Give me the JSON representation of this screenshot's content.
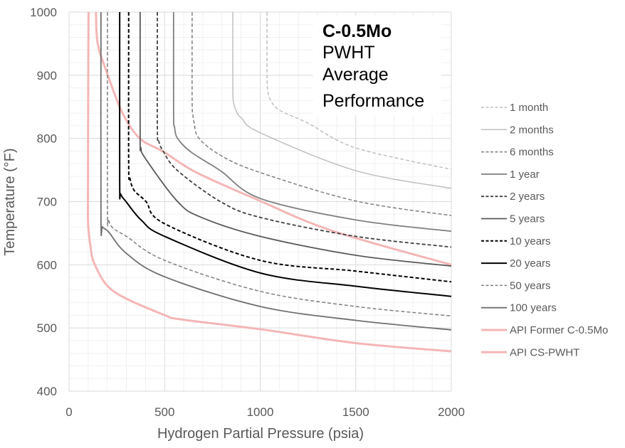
{
  "chart_data": {
    "type": "line",
    "title": "",
    "annotation": [
      "C-0.5Mo",
      "PWHT",
      "Average",
      "Performance"
    ],
    "xlabel": "Hydrogen Partial Pressure (psia)",
    "ylabel": "Temperature (°F)",
    "xlim": [
      0,
      2000
    ],
    "ylim": [
      400,
      1000
    ],
    "xticks": [
      0,
      500,
      1000,
      1500,
      2000
    ],
    "yticks": [
      400,
      500,
      600,
      700,
      800,
      900,
      1000
    ],
    "grid": true,
    "legend_position": "right",
    "series": [
      {
        "name": "1 month",
        "color": "#bfbfbf",
        "dash": true,
        "width": 1.5,
        "x": [
          1036,
          1036,
          1040,
          1052,
          1100,
          1251,
          1500,
          2000
        ],
        "y": [
          1000,
          900,
          875,
          862,
          845,
          824,
          785,
          751
        ]
      },
      {
        "name": "2 months",
        "color": "#bfbfbf",
        "dash": false,
        "width": 1.5,
        "x": [
          857,
          857,
          862,
          880,
          903,
          1000,
          1500,
          2000
        ],
        "y": [
          1000,
          880,
          855,
          840,
          832,
          809,
          749,
          721
        ]
      },
      {
        "name": "6 months",
        "color": "#7f7f7f",
        "dash": true,
        "width": 1.5,
        "x": [
          644,
          644,
          648,
          655,
          680,
          800,
          1000,
          1500,
          2000
        ],
        "y": [
          1000,
          860,
          838,
          824,
          800,
          772,
          746,
          701,
          678
        ]
      },
      {
        "name": "1 year",
        "color": "#7f7f7f",
        "dash": false,
        "width": 1.8,
        "x": [
          547,
          547,
          552,
          568,
          640,
          792,
          1000,
          1500,
          2000
        ],
        "y": [
          1000,
          840,
          818,
          800,
          778,
          749,
          705,
          671,
          653
        ]
      },
      {
        "name": "2 years",
        "color": "#404040",
        "dash": true,
        "width": 1.8,
        "x": [
          462,
          462,
          470,
          494,
          568,
          792,
          1000,
          1500,
          2000
        ],
        "y": [
          1000,
          815,
          795,
          779,
          749,
          700,
          675,
          645,
          628
        ]
      },
      {
        "name": "5 years",
        "color": "#595959",
        "dash": false,
        "width": 1.8,
        "x": [
          372,
          372,
          376,
          400,
          568,
          692,
          1000,
          1500,
          2000
        ],
        "y": [
          1000,
          800,
          785,
          768,
          700,
          675,
          645,
          615,
          598
        ]
      },
      {
        "name": "10 years",
        "color": "#000000",
        "dash": true,
        "width": 2,
        "x": [
          312,
          312,
          318,
          340,
          403,
          500,
          1000,
          1500,
          2000
        ],
        "y": [
          1000,
          760,
          738,
          718,
          700,
          665,
          607,
          590,
          573
        ]
      },
      {
        "name": "20 years",
        "color": "#000000",
        "dash": false,
        "width": 2,
        "x": [
          265,
          265,
          270,
          298,
          380,
          500,
          1000,
          1500,
          2000
        ],
        "y": [
          1000,
          730,
          712,
          700,
          670,
          645,
          587,
          566,
          550
        ]
      },
      {
        "name": "50 years",
        "color": "#7f7f7f",
        "dash": true,
        "width": 1.5,
        "x": [
          201,
          201,
          206,
          230,
          300,
          500,
          1000,
          1500,
          2000
        ],
        "y": [
          1000,
          690,
          672,
          658,
          645,
          607,
          558,
          534,
          519
        ]
      },
      {
        "name": "100 years",
        "color": "#6f6f6f",
        "dash": false,
        "width": 1.8,
        "x": [
          167,
          167,
          175,
          207,
          300,
          500,
          1000,
          1500,
          2000
        ],
        "y": [
          1000,
          675,
          660,
          652,
          618,
          581,
          534,
          512,
          497
        ]
      },
      {
        "name": "API Former C-0.5Mo",
        "color": "#f4b6b6",
        "dash": false,
        "width": 3,
        "x": [
          141,
          150,
          203,
          280,
          370,
          494,
          667,
          1000,
          1375,
          2000
        ],
        "y": [
          1000,
          950,
          900,
          840,
          800,
          779,
          746,
          701,
          654,
          600
        ]
      },
      {
        "name": "API CS-PWHT",
        "color": "#f4b6b6",
        "dash": false,
        "width": 3,
        "x": [
          102,
          100,
          99,
          100,
          112,
          135,
          233,
          494,
          599,
          1000,
          1500,
          2000
        ],
        "y": [
          1000,
          850,
          700,
          663,
          630,
          600,
          558,
          521,
          513,
          498,
          476,
          463
        ]
      }
    ]
  }
}
